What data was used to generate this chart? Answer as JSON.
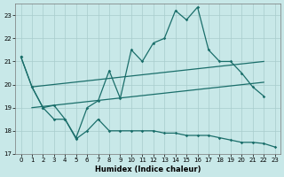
{
  "xlabel": "Humidex (Indice chaleur)",
  "bg_color": "#c8e8e8",
  "grid_color": "#a8cccc",
  "line_color": "#1a6e6a",
  "xlim": [
    -0.5,
    23.5
  ],
  "ylim": [
    17,
    23.5
  ],
  "yticks": [
    17,
    18,
    19,
    20,
    21,
    22,
    23
  ],
  "xticks": [
    0,
    1,
    2,
    3,
    4,
    5,
    6,
    7,
    8,
    9,
    10,
    11,
    12,
    13,
    14,
    15,
    16,
    17,
    18,
    19,
    20,
    21,
    22,
    23
  ],
  "line1_x": [
    0,
    1,
    2,
    3,
    4,
    5,
    6,
    7,
    8,
    9,
    10,
    11,
    12,
    13,
    14,
    15,
    16,
    17,
    18,
    19,
    20,
    21,
    22
  ],
  "line1_y": [
    21.2,
    19.9,
    19.0,
    19.1,
    18.5,
    17.7,
    19.0,
    19.3,
    20.6,
    19.4,
    21.5,
    21.0,
    21.8,
    22.0,
    23.2,
    22.8,
    23.35,
    21.5,
    21.0,
    21.0,
    20.5,
    19.9,
    19.5
  ],
  "line2_x": [
    0,
    1,
    2,
    3,
    4,
    5,
    6,
    7,
    8,
    9,
    10,
    11,
    12,
    13,
    14,
    15,
    16,
    17,
    18,
    19,
    20,
    21,
    22,
    23
  ],
  "line2_y": [
    21.2,
    19.9,
    19.0,
    18.5,
    18.5,
    17.65,
    18.0,
    18.5,
    18.0,
    18.0,
    18.0,
    18.0,
    18.0,
    17.9,
    17.9,
    17.8,
    17.8,
    17.8,
    17.7,
    17.6,
    17.5,
    17.5,
    17.45,
    17.3
  ],
  "trend1_x": [
    1,
    22
  ],
  "trend1_y": [
    19.9,
    21.0
  ],
  "trend2_x": [
    1,
    22
  ],
  "trend2_y": [
    19.0,
    20.1
  ]
}
